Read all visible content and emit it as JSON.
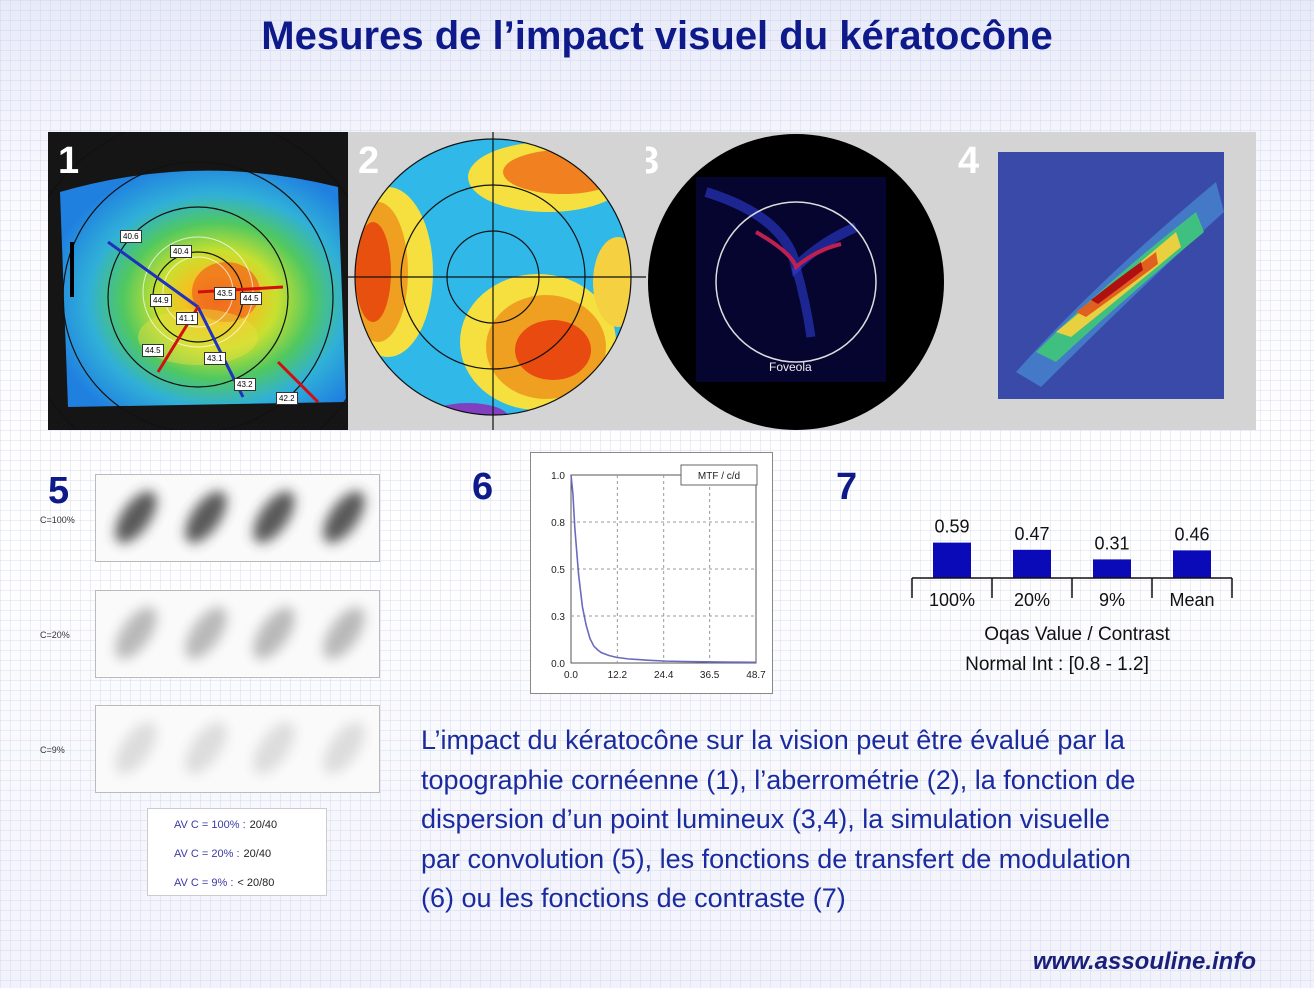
{
  "title": "Mesures de l’impact visuel du kératocône",
  "panels": {
    "p1": {
      "number": "1",
      "labels": [
        "40.6",
        "40.4",
        "43.5",
        "44.5",
        "44.9",
        "41.1",
        "44.5",
        "43.1",
        "43.2",
        "42.2"
      ]
    },
    "p2": {
      "number": "2"
    },
    "p3": {
      "number": "3",
      "label": "Foveola"
    },
    "p4": {
      "number": "4"
    }
  },
  "sim": {
    "number": "5",
    "rows": [
      {
        "label": "C=100%",
        "intensity": 1.0
      },
      {
        "label": "C=20%",
        "intensity": 0.4
      },
      {
        "label": "C=9%",
        "intensity": 0.18
      }
    ],
    "avc": [
      {
        "key": "AV C = 100% :",
        "value": "20/40"
      },
      {
        "key": "AV C = 20% :",
        "value": "20/40"
      },
      {
        "key": "AV C = 9% :",
        "value": "< 20/80"
      }
    ]
  },
  "mtf": {
    "number": "6",
    "chart_data": {
      "type": "line",
      "legend": "MTF / c/d",
      "x_ticks": [
        "0.0",
        "12.2",
        "24.4",
        "36.5",
        "48.7"
      ],
      "y_ticks": [
        "0.0",
        "0.3",
        "0.5",
        "0.8",
        "1.0"
      ],
      "xlim": [
        0,
        48.7
      ],
      "ylim": [
        0,
        1.0
      ],
      "series": [
        {
          "x": [
            0,
            0.5,
            1,
            2,
            3,
            4,
            5,
            6,
            7,
            8,
            10,
            12,
            15,
            20,
            25,
            30,
            40,
            48.7
          ],
          "y": [
            1.0,
            0.9,
            0.72,
            0.47,
            0.3,
            0.2,
            0.13,
            0.09,
            0.07,
            0.055,
            0.04,
            0.03,
            0.022,
            0.015,
            0.01,
            0.008,
            0.005,
            0.004
          ]
        }
      ],
      "color": "#6a6ac0"
    }
  },
  "contrast": {
    "number": "7",
    "chart_data": {
      "type": "bar",
      "categories": [
        "100%",
        "20%",
        "9%",
        "Mean"
      ],
      "values": [
        0.59,
        0.47,
        0.31,
        0.46
      ],
      "value_labels": [
        "0.59",
        "0.47",
        "0.31",
        "0.46"
      ],
      "xlabel": "Oqas Value / Contrast",
      "note": "Normal Int : [0.8 - 1.2]",
      "ylim": [
        0,
        1.0
      ],
      "color": "#0a0ab8"
    }
  },
  "paragraph": [
    "L’impact du kératocône sur la vision peut être évalué par la",
    "topographie cornéenne (1), l’aberrométrie (2), la fonction de",
    "dispersion d’un point lumineux (3,4), la simulation visuelle",
    "par convolution (5), les fonctions de transfert de modulation",
    "(6) ou les fonctions de contraste (7)"
  ],
  "website": "www.assouline.info"
}
